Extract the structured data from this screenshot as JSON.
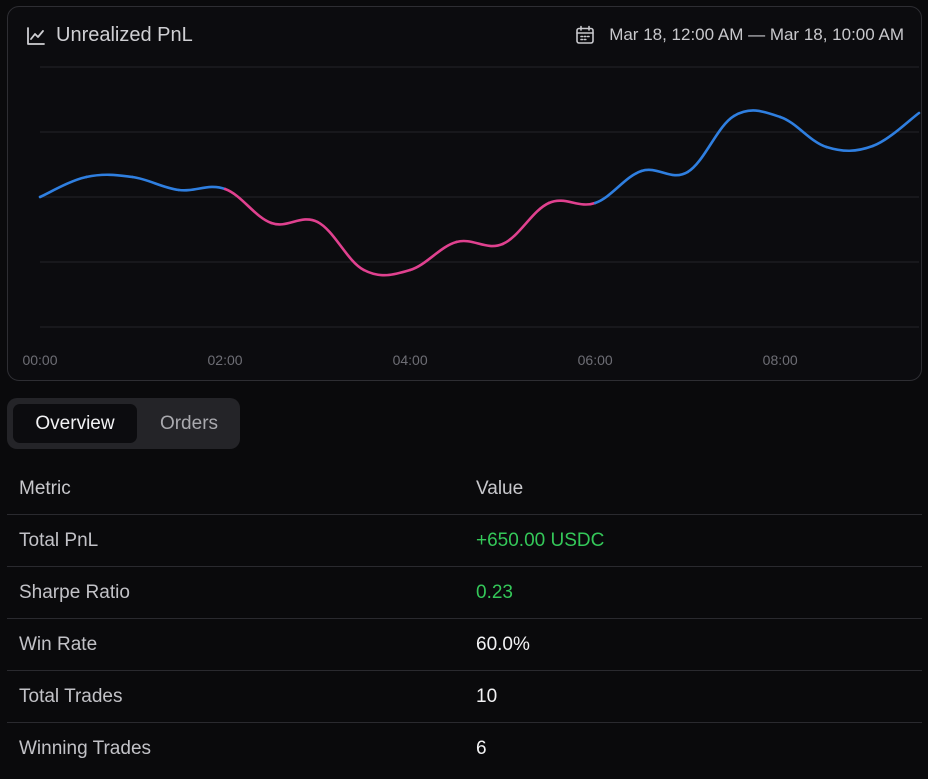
{
  "chart": {
    "title": "Unrealized PnL",
    "title_icon": "line-chart-icon",
    "date_range": "Mar 18, 12:00 AM — Mar 18, 10:00 AM",
    "date_icon": "calendar-icon",
    "colors": {
      "gain": "#2f7fe0",
      "loss": "#e0418f",
      "grid": "#24242a"
    }
  },
  "chart_data": {
    "type": "line",
    "x": [
      0.0,
      0.5,
      1.0,
      1.5,
      2.0,
      2.5,
      3.0,
      3.5,
      4.0,
      4.5,
      5.0,
      5.5,
      6.0,
      6.5,
      7.0,
      7.5,
      8.0,
      8.5,
      9.0,
      9.5
    ],
    "x_ticks": [
      "00:00",
      "02:00",
      "04:00",
      "06:00",
      "08:00"
    ],
    "series": [
      {
        "values": [
          0,
          20,
          20,
          7,
          8,
          -26,
          -25,
          -73,
          -73,
          -45,
          -47,
          -6,
          -6,
          26,
          25,
          81,
          80,
          50,
          51,
          84
        ],
        "color_rule": "segments below baseline pink, above baseline blue"
      }
    ],
    "baseline": 0,
    "grid": true,
    "xlim": [
      0,
      9.5
    ]
  },
  "tabs": [
    {
      "label": "Overview",
      "active": true
    },
    {
      "label": "Orders",
      "active": false
    }
  ],
  "table": {
    "headers": [
      "Metric",
      "Value"
    ],
    "rows": [
      {
        "metric": "Total PnL",
        "value": "+650.00 USDC",
        "positive": true
      },
      {
        "metric": "Sharpe Ratio",
        "value": "0.23",
        "positive": true
      },
      {
        "metric": "Win Rate",
        "value": "60.0%",
        "positive": false
      },
      {
        "metric": "Total Trades",
        "value": "10",
        "positive": false
      },
      {
        "metric": "Winning Trades",
        "value": "6",
        "positive": false
      }
    ]
  }
}
